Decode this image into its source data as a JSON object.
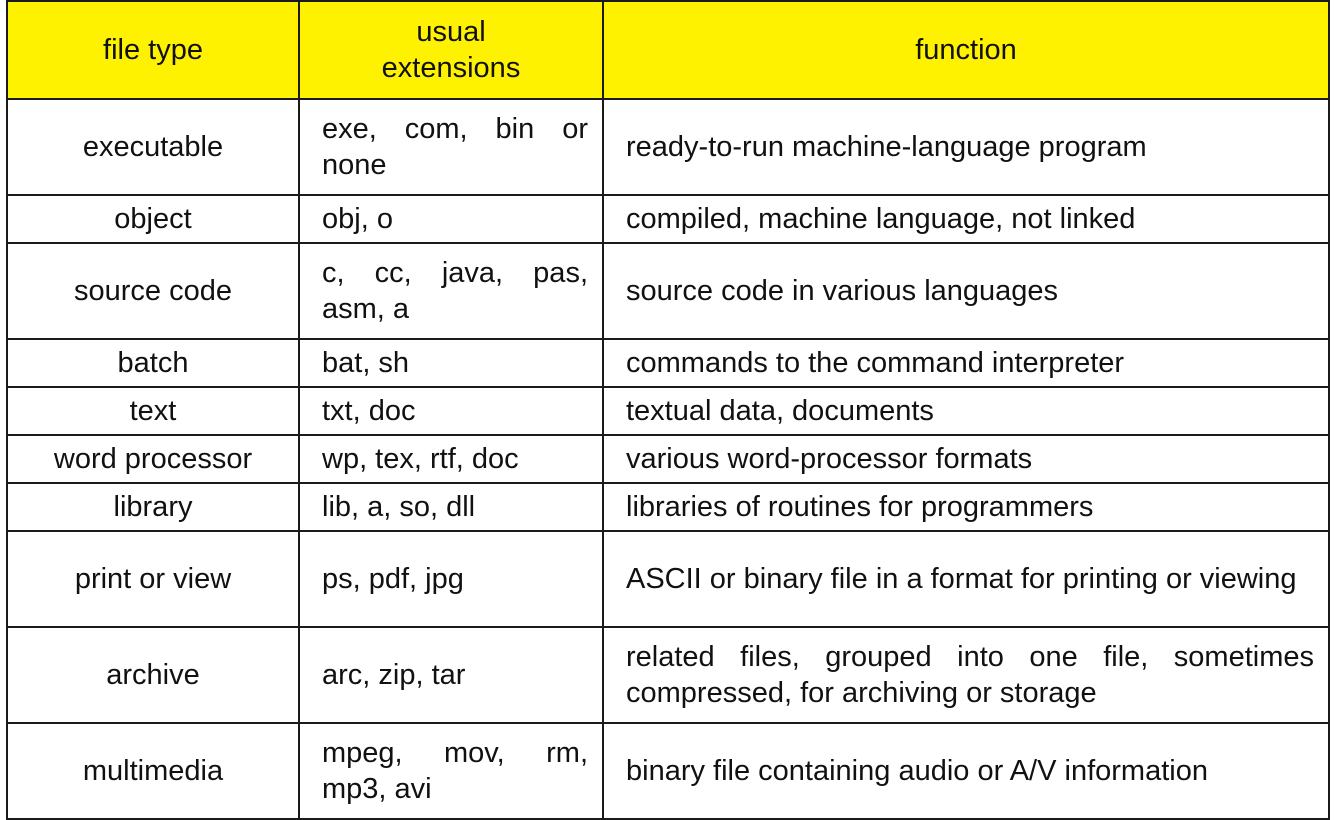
{
  "header": {
    "col_type": "file type",
    "col_ext": "usual extensions",
    "col_fn": "function",
    "header_bg": "#fff200"
  },
  "rows": [
    {
      "type": "executable",
      "ext": "exe, com, bin or none",
      "fn": "ready-to-run machine-language program",
      "h": "tall"
    },
    {
      "type": "object",
      "ext": "obj, o",
      "fn": "compiled, machine language, not linked"
    },
    {
      "type": "source code",
      "ext": "c, cc, java, pas, asm, a",
      "fn": "source code in various languages"
    },
    {
      "type": "batch",
      "ext": "bat, sh",
      "fn": "commands to the command interpreter"
    },
    {
      "type": "text",
      "ext": "txt, doc",
      "fn": "textual data, documents"
    },
    {
      "type": "word processor",
      "ext": "wp, tex, rtf, doc",
      "fn": "various word-processor formats"
    },
    {
      "type": "library",
      "ext": "lib, a, so, dll",
      "fn": "libraries of routines for programmers"
    },
    {
      "type": "print or view",
      "ext": "ps, pdf, jpg",
      "fn": "ASCII or binary file in a format for printing or viewing"
    },
    {
      "type": "archive",
      "ext": "arc, zip, tar",
      "fn": "related files, grouped into one file, sometimes compressed, for archiving or storage"
    },
    {
      "type": "multimedia",
      "ext": "mpeg, mov, rm, mp3, avi",
      "fn": "binary file containing audio or A/V information"
    }
  ]
}
